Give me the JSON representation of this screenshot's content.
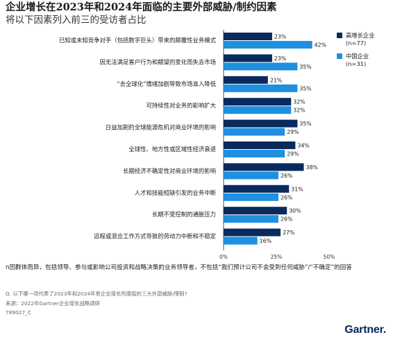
{
  "title": "企业增长在2023年和2024年面临的主要外部威胁/制约因素",
  "subtitle": "将以下因素列入前三的受访者占比",
  "colors": {
    "series_high_growth": "#0a2a5e",
    "series_china": "#1f8fe0"
  },
  "chart_data": {
    "type": "bar",
    "orientation": "horizontal",
    "categories": [
      "已知或未知竞争对手（包括数字巨头）带来的颠覆性业务模式",
      "因无法满足客户行为和期望的变化而失去市场",
      "“去全球化”情绪加剧导致市场准入降低",
      "可持续性对业务的影响扩大",
      "日益加剧的全球能源危机对商业环境的影响",
      "全球性、地方性或区域性经济衰退",
      "长期经济不确定性对商业环境的影响",
      "人才和技能短缺引发的业务中断",
      "长期不受控制的通胀压力",
      "远程或混合工作方式导致的劳动力中断和不稳定"
    ],
    "series": [
      {
        "name": "高增长企业 (n=77)",
        "values": [
          23,
          23,
          21,
          32,
          35,
          34,
          38,
          31,
          30,
          27
        ]
      },
      {
        "name": "中国企业 (n=31)",
        "values": [
          42,
          35,
          35,
          32,
          29,
          29,
          26,
          26,
          26,
          16
        ]
      }
    ],
    "value_labels": [
      [
        "23%",
        "23%",
        "21%",
        "32%",
        "35%",
        "34%",
        "38%",
        "31%",
        "30%",
        "27%"
      ],
      [
        "42%",
        "35%",
        "35%",
        "32%",
        "29%",
        "29%",
        "26%",
        "26%",
        "26%",
        "16%"
      ]
    ],
    "xlim": [
      0,
      50
    ],
    "xticks": [
      "0%",
      "25%",
      "50%"
    ],
    "legend": [
      {
        "label": "高增长企业",
        "sub": "(n=77)"
      },
      {
        "label": "中国企业",
        "sub": "(n=31)"
      }
    ],
    "legend_position": "top-right"
  },
  "note": "n因群体而异，包括领导、参与或影响公司投资和战略决策的业务领导者，不包括“我们预计公司不会受到任何威胁”/“不确定”的回答",
  "question": "Q. 以下哪一项代表了2023年和2024年贵企业增长所面临的三大外部威胁/限制?",
  "source": "来源：2022年Gartner企业增长战略调研",
  "code": "789027_C",
  "brand": "Gartner."
}
